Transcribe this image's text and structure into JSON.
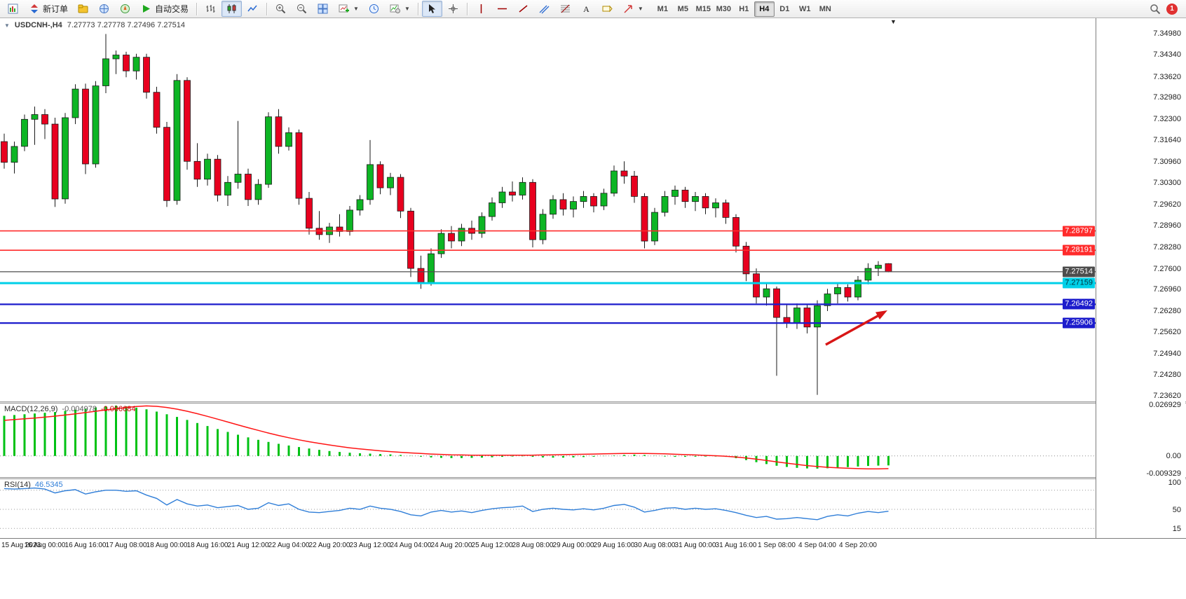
{
  "toolbar": {
    "new_order": "新订单",
    "autotrade": "自动交易",
    "timeframes": [
      "M1",
      "M5",
      "M15",
      "M30",
      "H1",
      "H4",
      "D1",
      "W1",
      "MN"
    ],
    "active_timeframe": "H4",
    "notification_count": "1"
  },
  "chart_header": {
    "title": "USDCNH-,H4",
    "ohlc": "7.27773 7.27778 7.27496 7.27514"
  },
  "price_axis_labels": [
    "7.34980",
    "7.34340",
    "7.33620",
    "7.32980",
    "7.32300",
    "7.31640",
    "7.30960",
    "7.30300",
    "7.29620",
    "7.28960",
    "7.28280",
    "7.27600",
    "7.26960",
    "7.26280",
    "7.25620",
    "7.24940",
    "7.24280",
    "7.23620"
  ],
  "time_axis_labels": [
    "15 Aug 2023",
    "16 Aug 00:00",
    "16 Aug 16:00",
    "17 Aug 08:00",
    "18 Aug 00:00",
    "18 Aug 16:00",
    "21 Aug 12:00",
    "22 Aug 04:00",
    "22 Aug 20:00",
    "23 Aug 12:00",
    "24 Aug 04:00",
    "24 Aug 20:00",
    "25 Aug 12:00",
    "28 Aug 08:00",
    "29 Aug 00:00",
    "29 Aug 16:00",
    "30 Aug 08:00",
    "31 Aug 00:00",
    "31 Aug 16:00",
    "1 Sep 08:00",
    "4 Sep 04:00",
    "4 Sep 20:00"
  ],
  "price_lines": [
    {
      "label": "7.28797",
      "price": 7.28797,
      "color": "#ff2b2b",
      "text_color": "#ffffff",
      "thickness": 1.6
    },
    {
      "label": "7.28191",
      "price": 7.28191,
      "color": "#ff2b2b",
      "text_color": "#ffffff",
      "thickness": 1.6
    },
    {
      "label": "7.27514",
      "price": 7.27514,
      "color": "#4d4d4d",
      "text_color": "#ffffff",
      "thickness": 1.2
    },
    {
      "label": "7.27159",
      "price": 7.27159,
      "color": "#00d0e8",
      "text_color": "#00333d",
      "thickness": 3
    },
    {
      "label": "7.26492",
      "price": 7.26492,
      "color": "#1c1ccc",
      "text_color": "#ffffff",
      "thickness": 2.2
    },
    {
      "label": "7.25906",
      "price": 7.25906,
      "color": "#1c1ccc",
      "text_color": "#ffffff",
      "thickness": 2.2
    }
  ],
  "indicators": {
    "macd": {
      "name": "MACD(12,26,9)",
      "value_main": "-0.004978",
      "value_signal": "-0.006684",
      "axis_labels": [
        "0.026929",
        "0.00",
        "-0.009329"
      ]
    },
    "rsi": {
      "name": "RSI(14)",
      "value": "46.5345",
      "axis_labels": [
        "100",
        "50",
        "15"
      ],
      "levels": [
        85,
        50,
        15
      ]
    }
  },
  "chart_data": {
    "type": "candlestick",
    "symbol": "USDCNH",
    "timeframe": "H4",
    "ohlc_current": {
      "open": "7.27773",
      "high": "7.27778",
      "low": "7.27496",
      "close": "7.27514"
    },
    "y_range": [
      7.2351,
      7.3532
    ],
    "colors": {
      "up": "#0db524",
      "down": "#e8001f",
      "wick": "#1a1a1a",
      "macd_hist": "#00c214",
      "macd_signal": "#ff1414",
      "rsi_line": "#2f7ed8",
      "arrow": "#d81616",
      "grid": "#9a9a9a"
    },
    "candles": [
      [
        7.316,
        7.3185,
        7.3075,
        7.3095
      ],
      [
        7.3095,
        7.316,
        7.306,
        7.3145
      ],
      [
        7.3145,
        7.3245,
        7.313,
        7.323
      ],
      [
        7.323,
        7.327,
        7.315,
        7.3245
      ],
      [
        7.3245,
        7.3262,
        7.3168,
        7.3215
      ],
      [
        7.3215,
        7.3235,
        7.2955,
        7.298
      ],
      [
        7.298,
        7.325,
        7.2965,
        7.3235
      ],
      [
        7.3235,
        7.334,
        7.3215,
        7.3325
      ],
      [
        7.3325,
        7.3342,
        7.3058,
        7.309
      ],
      [
        7.309,
        7.335,
        7.3078,
        7.3335
      ],
      [
        7.3335,
        7.3498,
        7.3312,
        7.342
      ],
      [
        7.342,
        7.3446,
        7.3372,
        7.3432
      ],
      [
        7.3432,
        7.3442,
        7.3362,
        7.3382
      ],
      [
        7.3382,
        7.3436,
        7.3355,
        7.3425
      ],
      [
        7.3425,
        7.3436,
        7.3295,
        7.3315
      ],
      [
        7.3315,
        7.3332,
        7.3185,
        7.3205
      ],
      [
        7.3205,
        7.3222,
        7.2955,
        7.2975
      ],
      [
        7.2975,
        7.3372,
        7.2962,
        7.3352
      ],
      [
        7.3352,
        7.3362,
        7.3072,
        7.3098
      ],
      [
        7.3098,
        7.3155,
        7.3018,
        7.3042
      ],
      [
        7.3042,
        7.3122,
        7.3022,
        7.3105
      ],
      [
        7.3105,
        7.3118,
        7.2972,
        7.2992
      ],
      [
        7.2992,
        7.3052,
        7.2958,
        7.3032
      ],
      [
        7.3032,
        7.3225,
        7.3012,
        7.3058
      ],
      [
        7.3058,
        7.3075,
        7.2958,
        7.2978
      ],
      [
        7.2978,
        7.3042,
        7.2962,
        7.3026
      ],
      [
        7.3026,
        7.3252,
        7.3015,
        7.3238
      ],
      [
        7.3238,
        7.3262,
        7.3122,
        7.3145
      ],
      [
        7.3145,
        7.3205,
        7.3132,
        7.3188
      ],
      [
        7.3188,
        7.3198,
        7.2962,
        7.2982
      ],
      [
        7.2982,
        7.3002,
        7.2868,
        7.2888
      ],
      [
        7.2888,
        7.2942,
        7.2852,
        7.2868
      ],
      [
        7.2868,
        7.2905,
        7.2842,
        7.2892
      ],
      [
        7.2892,
        7.2932,
        7.2862,
        7.2878
      ],
      [
        7.2878,
        7.2958,
        7.2865,
        7.2945
      ],
      [
        7.2945,
        7.2992,
        7.2928,
        7.2978
      ],
      [
        7.2978,
        7.3165,
        7.2962,
        7.3088
      ],
      [
        7.3088,
        7.3098,
        7.2995,
        7.3015
      ],
      [
        7.3015,
        7.3062,
        7.2992,
        7.3048
      ],
      [
        7.3048,
        7.3058,
        7.292,
        7.2942
      ],
      [
        7.2942,
        7.2952,
        7.2735,
        7.2762
      ],
      [
        7.2762,
        7.2802,
        7.2698,
        7.2718
      ],
      [
        7.2718,
        7.2825,
        7.2708,
        7.2808
      ],
      [
        7.2808,
        7.2885,
        7.2795,
        7.2872
      ],
      [
        7.2872,
        7.2895,
        7.2825,
        7.2848
      ],
      [
        7.2848,
        7.2902,
        7.2832,
        7.2888
      ],
      [
        7.2888,
        7.2912,
        7.2852,
        7.2872
      ],
      [
        7.2872,
        7.2938,
        7.2858,
        7.2925
      ],
      [
        7.2925,
        7.2985,
        7.2912,
        7.2968
      ],
      [
        7.2968,
        7.3018,
        7.2952,
        7.3002
      ],
      [
        7.3002,
        7.3035,
        7.2972,
        7.2992
      ],
      [
        7.2992,
        7.3048,
        7.2978,
        7.3032
      ],
      [
        7.3032,
        7.3042,
        7.2828,
        7.2852
      ],
      [
        7.2852,
        7.2948,
        7.2838,
        7.2932
      ],
      [
        7.2932,
        7.2992,
        7.2918,
        7.2978
      ],
      [
        7.2978,
        7.2998,
        7.2928,
        7.2948
      ],
      [
        7.2948,
        7.2988,
        7.2922,
        7.2972
      ],
      [
        7.2972,
        7.3005,
        7.2952,
        7.2988
      ],
      [
        7.2988,
        7.2998,
        7.2938,
        7.2958
      ],
      [
        7.2958,
        7.3012,
        7.2945,
        7.2998
      ],
      [
        7.2998,
        7.3085,
        7.2988,
        7.3068
      ],
      [
        7.3068,
        7.3098,
        7.3028,
        7.3052
      ],
      [
        7.3052,
        7.3068,
        7.2968,
        7.2988
      ],
      [
        7.2988,
        7.2998,
        7.2825,
        7.2848
      ],
      [
        7.2848,
        7.2952,
        7.2835,
        7.2938
      ],
      [
        7.2938,
        7.3005,
        7.2925,
        7.2988
      ],
      [
        7.2988,
        7.3022,
        7.2962,
        7.3008
      ],
      [
        7.3008,
        7.3018,
        7.2952,
        7.2972
      ],
      [
        7.2972,
        7.3002,
        7.2942,
        7.2988
      ],
      [
        7.2988,
        7.2998,
        7.2932,
        7.2952
      ],
      [
        7.2952,
        7.2982,
        7.2922,
        7.2968
      ],
      [
        7.2968,
        7.2978,
        7.2902,
        7.2922
      ],
      [
        7.2922,
        7.2932,
        7.2812,
        7.2832
      ],
      [
        7.2832,
        7.2845,
        7.2722,
        7.2745
      ],
      [
        7.2745,
        7.2762,
        7.2652,
        7.2672
      ],
      [
        7.2672,
        7.2715,
        7.2645,
        7.2698
      ],
      [
        7.2698,
        7.2705,
        7.2425,
        7.2608
      ],
      [
        7.2608,
        7.2648,
        7.2575,
        7.2592
      ],
      [
        7.2592,
        7.2652,
        7.2572,
        7.2638
      ],
      [
        7.2638,
        7.2648,
        7.2558,
        7.2578
      ],
      [
        7.2578,
        7.2662,
        7.2365,
        7.2645
      ],
      [
        7.2645,
        7.2698,
        7.2628,
        7.2682
      ],
      [
        7.2682,
        7.2715,
        7.2652,
        7.2702
      ],
      [
        7.2702,
        7.2712,
        7.2658,
        7.2672
      ],
      [
        7.2672,
        7.2738,
        7.2662,
        7.2725
      ],
      [
        7.2725,
        7.2778,
        7.2712,
        7.2762
      ],
      [
        7.2762,
        7.2785,
        7.2738,
        7.2772
      ],
      [
        7.2777,
        7.2778,
        7.275,
        7.2751
      ]
    ],
    "macd": {
      "range": [
        -0.009329,
        0.026929
      ],
      "histogram": [
        0.0212,
        0.0216,
        0.022,
        0.0224,
        0.0228,
        0.0232,
        0.0238,
        0.0244,
        0.025,
        0.0256,
        0.0262,
        0.0266,
        0.0262,
        0.0255,
        0.0246,
        0.0234,
        0.022,
        0.0206,
        0.019,
        0.0174,
        0.0158,
        0.0142,
        0.0127,
        0.0112,
        0.0098,
        0.0085,
        0.0074,
        0.0064,
        0.0055,
        0.0047,
        0.0039,
        0.0032,
        0.0026,
        0.0021,
        0.0017,
        0.0014,
        0.0012,
        0.001,
        0.0008,
        0.0005,
        0.0001,
        -0.0004,
        -0.0008,
        -0.001,
        -0.0011,
        -0.0011,
        -0.001,
        -0.0009,
        -0.0007,
        -0.0005,
        -0.0003,
        -0.0002,
        -0.0005,
        -0.0008,
        -0.0009,
        -0.0009,
        -0.0008,
        -0.0006,
        -0.0004,
        -0.0001,
        0.0002,
        0.0005,
        0.0007,
        0.0005,
        0.0001,
        -0.0003,
        -0.0005,
        -0.0005,
        -0.0004,
        -0.0003,
        -0.0003,
        -0.0005,
        -0.0012,
        -0.0022,
        -0.0033,
        -0.0043,
        -0.0052,
        -0.0058,
        -0.0063,
        -0.0066,
        -0.0067,
        -0.0065,
        -0.0062,
        -0.0059,
        -0.0056,
        -0.0053,
        -0.0051,
        -0.005
      ],
      "signal": [
        0.0188,
        0.0192,
        0.0196,
        0.02,
        0.0205,
        0.021,
        0.0216,
        0.0222,
        0.0229,
        0.0236,
        0.0243,
        0.025,
        0.0256,
        0.0261,
        0.0264,
        0.0262,
        0.0256,
        0.0247,
        0.0236,
        0.0223,
        0.0209,
        0.0194,
        0.0179,
        0.0164,
        0.0149,
        0.0135,
        0.0121,
        0.0108,
        0.0096,
        0.0085,
        0.0075,
        0.0066,
        0.0058,
        0.005,
        0.0043,
        0.0037,
        0.0032,
        0.0027,
        0.0023,
        0.0019,
        0.0016,
        0.0013,
        0.001,
        0.0008,
        0.0006,
        0.0005,
        0.0004,
        0.0004,
        0.0004,
        0.0004,
        0.0004,
        0.0004,
        0.0004,
        0.0005,
        0.0006,
        0.0007,
        0.0008,
        0.0009,
        0.001,
        0.0011,
        0.0012,
        0.0013,
        0.0013,
        0.0013,
        0.0012,
        0.0011,
        0.0009,
        0.0007,
        0.0005,
        0.0003,
        0.0001,
        -0.0002,
        -0.0006,
        -0.0011,
        -0.0017,
        -0.0024,
        -0.0031,
        -0.0038,
        -0.0045,
        -0.0051,
        -0.0056,
        -0.006,
        -0.0063,
        -0.0065,
        -0.0067,
        -0.0068,
        -0.0068,
        -0.0067
      ]
    },
    "rsi": {
      "range": [
        0,
        100
      ],
      "values": [
        88,
        87,
        88,
        89,
        87,
        80,
        84,
        86,
        78,
        82,
        85,
        85,
        83,
        84,
        76,
        70,
        58,
        68,
        60,
        56,
        58,
        53,
        55,
        57,
        50,
        52,
        62,
        57,
        60,
        50,
        45,
        44,
        46,
        48,
        52,
        50,
        56,
        52,
        50,
        46,
        40,
        38,
        45,
        48,
        45,
        47,
        44,
        48,
        51,
        53,
        54,
        56,
        46,
        50,
        52,
        50,
        49,
        51,
        49,
        52,
        57,
        59,
        54,
        45,
        48,
        52,
        53,
        50,
        52,
        50,
        51,
        48,
        44,
        39,
        35,
        37,
        32,
        33,
        35,
        33,
        31,
        37,
        40,
        38,
        43,
        46,
        44,
        46.5
      ]
    },
    "annotations": [
      {
        "type": "arrow",
        "color": "#d81616"
      }
    ]
  }
}
